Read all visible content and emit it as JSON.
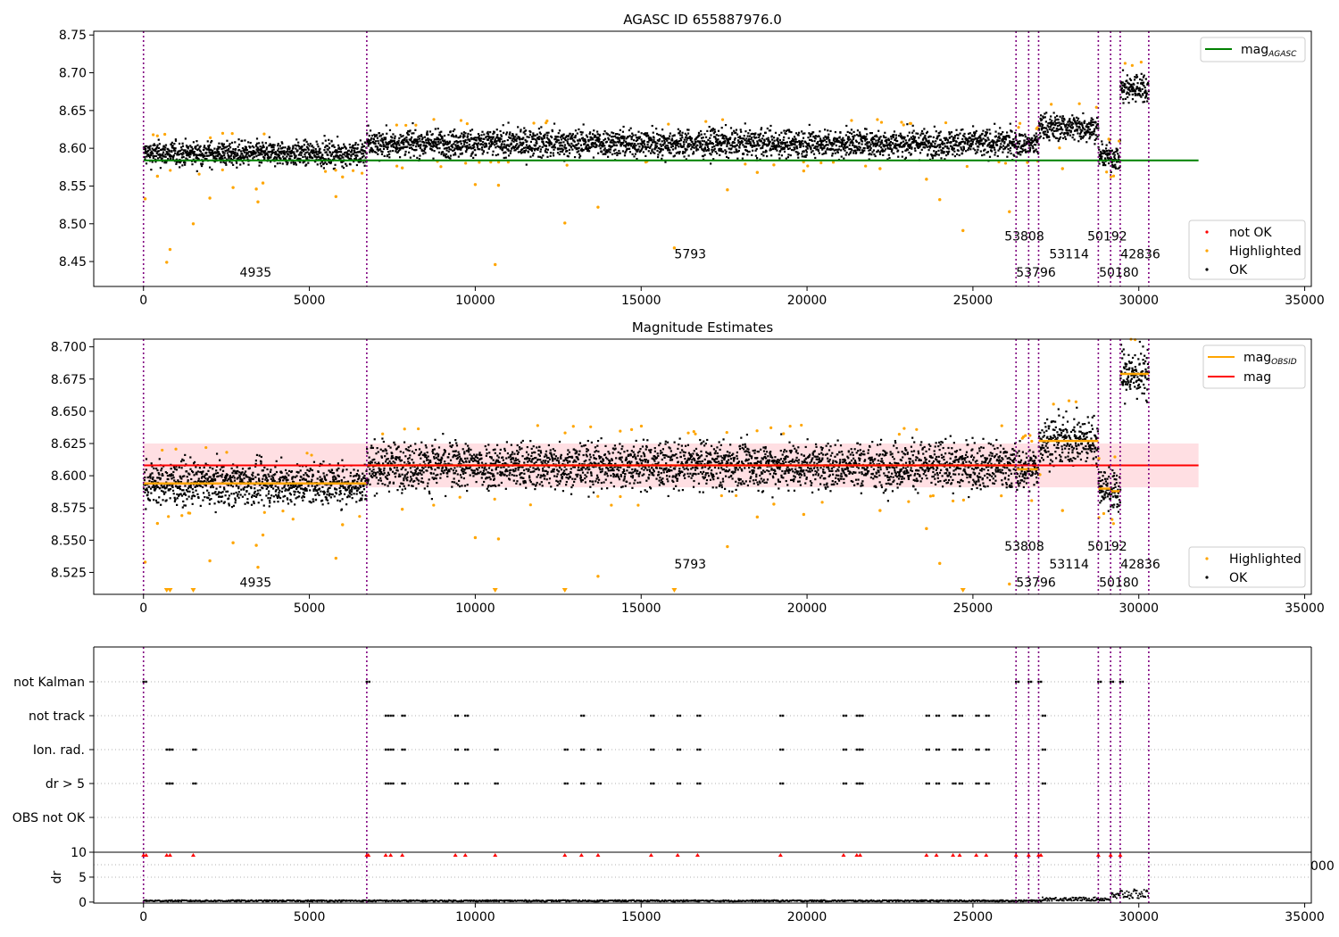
{
  "colors": {
    "ok": "#000000",
    "highlighted": "#ffa500",
    "not_ok": "#ff0000",
    "agasc_line": "#008000",
    "mag_line": "#ff0000",
    "mag_band": "#ffc0c8",
    "obsid_line": "#ffa500",
    "obs_boundary": "#800080",
    "grid": "#b0b0b0"
  },
  "chart_data": [
    {
      "type": "scatter",
      "title": "AGASC ID 655887976.0",
      "xlim": [
        -1500,
        35200
      ],
      "ylim": [
        8.417,
        8.755
      ],
      "xticks": [
        0,
        5000,
        10000,
        15000,
        20000,
        25000,
        30000,
        35000
      ],
      "xtick_labels": [
        "0",
        "5000",
        "10000",
        "15000",
        "20000",
        "25000",
        "30000",
        "35000"
      ],
      "yticks": [
        8.45,
        8.5,
        8.55,
        8.6,
        8.65,
        8.7,
        8.75
      ],
      "ytick_labels": [
        "8.45",
        "8.50",
        "8.55",
        "8.60",
        "8.65",
        "8.70",
        "8.75"
      ],
      "legend": {
        "position": "top-right (line) / bottom-right (markers)",
        "entries": [
          {
            "label": "mag",
            "subscript": "AGASC",
            "marker": "line",
            "color": "#008000"
          },
          {
            "label": "not OK",
            "marker": "dot",
            "color": "#ff0000"
          },
          {
            "label": "Highlighted",
            "marker": "dot",
            "color": "#ffa500"
          },
          {
            "label": "OK",
            "marker": "dot",
            "color": "#000000"
          }
        ]
      },
      "agasc_mag": {
        "value": 8.584,
        "x_range": [
          0,
          31800
        ]
      },
      "obs_segments": [
        {
          "x0": 0,
          "x1": 6730,
          "mean": 8.593,
          "spread": 0.008
        },
        {
          "x0": 6730,
          "x1": 26300,
          "mean": 8.607,
          "spread": 0.009
        },
        {
          "x0": 26300,
          "x1": 26680,
          "mean": 8.605,
          "spread": 0.008
        },
        {
          "x0": 26680,
          "x1": 26980,
          "mean": 8.605,
          "spread": 0.008
        },
        {
          "x0": 26980,
          "x1": 28780,
          "mean": 8.628,
          "spread": 0.009
        },
        {
          "x0": 28780,
          "x1": 29150,
          "mean": 8.59,
          "spread": 0.007
        },
        {
          "x0": 29150,
          "x1": 29440,
          "mean": 8.588,
          "spread": 0.008
        },
        {
          "x0": 29440,
          "x1": 30300,
          "mean": 8.68,
          "spread": 0.01
        }
      ],
      "highlighted_outliers": [
        [
          50,
          8.533
        ],
        [
          420,
          8.563
        ],
        [
          700,
          8.449
        ],
        [
          800,
          8.466
        ],
        [
          1500,
          8.5
        ],
        [
          2000,
          8.534
        ],
        [
          2700,
          8.548
        ],
        [
          3400,
          8.546
        ],
        [
          3450,
          8.529
        ],
        [
          3600,
          8.554
        ],
        [
          5800,
          8.536
        ],
        [
          6000,
          8.562
        ],
        [
          7800,
          8.574
        ],
        [
          10000,
          8.552
        ],
        [
          10600,
          8.446
        ],
        [
          10700,
          8.551
        ],
        [
          12700,
          8.501
        ],
        [
          13700,
          8.522
        ],
        [
          16000,
          8.468
        ],
        [
          17600,
          8.545
        ],
        [
          18500,
          8.568
        ],
        [
          19000,
          8.578
        ],
        [
          24000,
          8.532
        ],
        [
          24700,
          8.491
        ],
        [
          26100,
          8.516
        ],
        [
          27700,
          8.573
        ],
        [
          23600,
          8.559
        ],
        [
          22200,
          8.573
        ],
        [
          19900,
          8.57
        ]
      ],
      "vlines": [
        0,
        6730,
        26300,
        26680,
        26980,
        28780,
        29150,
        29440,
        30300
      ],
      "annotations": [
        {
          "text": "4935",
          "x": 2900,
          "y": 8.43
        },
        {
          "text": "5793",
          "x": 16000,
          "y": 8.454
        },
        {
          "text": "53808",
          "x": 25950,
          "y": 8.478
        },
        {
          "text": "53796",
          "x": 26300,
          "y": 8.43
        },
        {
          "text": "53114",
          "x": 27300,
          "y": 8.454
        },
        {
          "text": "50192",
          "x": 28450,
          "y": 8.478
        },
        {
          "text": "50180",
          "x": 28800,
          "y": 8.43
        },
        {
          "text": "42836",
          "x": 29450,
          "y": 8.454
        }
      ]
    },
    {
      "type": "scatter",
      "title": "Magnitude Estimates",
      "xlim": [
        -1500,
        35200
      ],
      "ylim": [
        8.508,
        8.706
      ],
      "xticks": [
        0,
        5000,
        10000,
        15000,
        20000,
        25000,
        30000,
        35000
      ],
      "xtick_labels": [
        "0",
        "5000",
        "10000",
        "15000",
        "20000",
        "25000",
        "30000",
        "35000"
      ],
      "yticks": [
        8.525,
        8.55,
        8.575,
        8.6,
        8.625,
        8.65,
        8.675,
        8.7
      ],
      "ytick_labels": [
        "8.525",
        "8.550",
        "8.575",
        "8.600",
        "8.625",
        "8.650",
        "8.675",
        "8.700"
      ],
      "legend": {
        "position": "top-right (lines) / bottom-right (markers)",
        "entries": [
          {
            "label": "mag",
            "subscript": "OBSID",
            "marker": "line",
            "color": "#ffa500"
          },
          {
            "label": "mag",
            "marker": "line",
            "color": "#ff0000"
          },
          {
            "label": "Highlighted",
            "marker": "dot",
            "color": "#ffa500"
          },
          {
            "label": "OK",
            "marker": "dot",
            "color": "#000000"
          }
        ]
      },
      "mag": {
        "value": 8.608,
        "band": [
          8.591,
          8.625
        ],
        "x_range": [
          0,
          31800
        ]
      },
      "obsid_mags": [
        8.594,
        8.608,
        8.605,
        8.605,
        8.627,
        8.59,
        8.588,
        8.679
      ],
      "clipped_markers_x": [
        700,
        800,
        1500,
        10600,
        12700,
        16000,
        24700
      ],
      "vlines": [
        0,
        6730,
        26300,
        26680,
        26980,
        28780,
        29150,
        29440,
        30300
      ],
      "annotations": [
        {
          "text": "4935",
          "x": 2900,
          "y": 8.514
        },
        {
          "text": "5793",
          "x": 16000,
          "y": 8.528
        },
        {
          "text": "53808",
          "x": 25950,
          "y": 8.542
        },
        {
          "text": "53796",
          "x": 26300,
          "y": 8.514
        },
        {
          "text": "53114",
          "x": 27300,
          "y": 8.528
        },
        {
          "text": "50192",
          "x": 28450,
          "y": 8.542
        },
        {
          "text": "50180",
          "x": 28800,
          "y": 8.514
        },
        {
          "text": "42836",
          "x": 29450,
          "y": 8.528
        }
      ]
    },
    {
      "type": "scatter",
      "title": "",
      "categories": [
        "not Kalman",
        "not track",
        "Ion. rad.",
        "dr > 5",
        "OBS not OK"
      ],
      "xlim": [
        -1500,
        35200
      ],
      "flag_x": {
        "not Kalman": [
          0,
          6730,
          26300,
          26680,
          26980,
          28780,
          29150,
          29440
        ],
        "not track": [
          7300,
          7450,
          7800,
          9400,
          9700,
          13200,
          15300,
          16100,
          16700,
          19200,
          21100,
          21500,
          21600,
          23600,
          23900,
          24400,
          24600,
          25100,
          25400,
          27100
        ],
        "Ion. rad.": [
          700,
          800,
          1500,
          7300,
          7450,
          7800,
          9400,
          9700,
          10600,
          12700,
          13200,
          13700,
          15300,
          16100,
          16700,
          19200,
          21100,
          21500,
          21600,
          23600,
          23900,
          24400,
          24600,
          25100,
          25400,
          27100
        ],
        "dr > 5": [
          700,
          800,
          1500,
          7300,
          7450,
          7800,
          9400,
          9700,
          10600,
          12700,
          13200,
          13700,
          15300,
          16100,
          16700,
          19200,
          21100,
          21500,
          21600,
          23600,
          23900,
          24400,
          24600,
          25100,
          25400,
          27100
        ],
        "OBS not OK": []
      },
      "vlines": [
        0,
        6730,
        26300,
        26680,
        26980,
        28780,
        29150,
        29440,
        30300
      ]
    },
    {
      "type": "scatter",
      "title": "",
      "ylabel": "dr",
      "xlim": [
        -1500,
        35200
      ],
      "ylim": [
        -0.2,
        10
      ],
      "xticks": [
        0,
        5000,
        10000,
        15000,
        20000,
        25000,
        30000,
        35000
      ],
      "xtick_labels": [
        "0",
        "5000",
        "10000",
        "15000",
        "20000",
        "25000",
        "30000",
        "35000"
      ],
      "yticks": [
        0,
        5,
        10
      ],
      "ytick_labels": [
        "0",
        "5",
        "10"
      ],
      "clipped_marker_x": [
        0,
        80,
        700,
        800,
        1500,
        6730,
        6780,
        7300,
        7450,
        7800,
        9400,
        9700,
        10600,
        12700,
        13200,
        13700,
        15300,
        16100,
        16700,
        19200,
        21100,
        21500,
        21600,
        23600,
        23900,
        24400,
        24600,
        25100,
        25400,
        26300,
        26680,
        26980,
        27050,
        28780,
        29150,
        29440
      ],
      "dr_profile": [
        {
          "x0": 0,
          "x1": 27100,
          "level": 0.25
        },
        {
          "x0": 27100,
          "x1": 29150,
          "level": 0.6
        },
        {
          "x0": 29150,
          "x1": 29440,
          "level": 1.2
        },
        {
          "x0": 29440,
          "x1": 30300,
          "level": 1.6
        }
      ],
      "stray_tick_label": "000",
      "vlines": [
        0,
        6730,
        26300,
        26680,
        26980,
        28780,
        29150,
        29440,
        30300
      ]
    }
  ]
}
